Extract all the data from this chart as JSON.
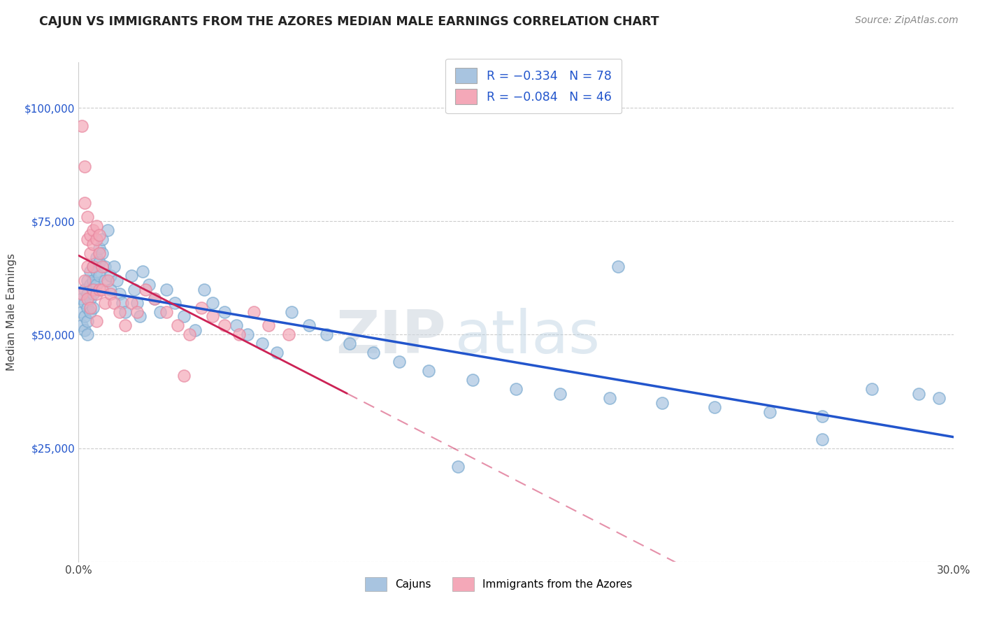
{
  "title": "CAJUN VS IMMIGRANTS FROM THE AZORES MEDIAN MALE EARNINGS CORRELATION CHART",
  "source": "Source: ZipAtlas.com",
  "ylabel": "Median Male Earnings",
  "xlim": [
    0.0,
    0.3
  ],
  "ylim": [
    0,
    110000
  ],
  "xtick_positions": [
    0.0,
    0.05,
    0.1,
    0.15,
    0.2,
    0.25,
    0.3
  ],
  "xticklabels": [
    "0.0%",
    "",
    "",
    "",
    "",
    "",
    "30.0%"
  ],
  "ytick_positions": [
    0,
    25000,
    50000,
    75000,
    100000
  ],
  "yticklabels": [
    "",
    "$25,000",
    "$50,000",
    "$75,000",
    "$100,000"
  ],
  "legend_r1": "-0.334",
  "legend_n1": "78",
  "legend_r2": "-0.084",
  "legend_n2": "46",
  "cajun_color": "#a8c4e0",
  "cajun_edge_color": "#7aaad0",
  "azores_color": "#f4a8b8",
  "azores_edge_color": "#e888a0",
  "cajun_line_color": "#2255cc",
  "azores_line_color": "#cc2255",
  "background_color": "#ffffff",
  "grid_color": "#cccccc",
  "watermark_zip": "ZIP",
  "watermark_atlas": "atlas",
  "cajun_x": [
    0.001,
    0.001,
    0.001,
    0.002,
    0.002,
    0.002,
    0.002,
    0.003,
    0.003,
    0.003,
    0.003,
    0.003,
    0.004,
    0.004,
    0.004,
    0.004,
    0.005,
    0.005,
    0.005,
    0.005,
    0.006,
    0.006,
    0.006,
    0.007,
    0.007,
    0.007,
    0.008,
    0.008,
    0.009,
    0.009,
    0.01,
    0.011,
    0.011,
    0.012,
    0.013,
    0.014,
    0.015,
    0.016,
    0.018,
    0.019,
    0.02,
    0.021,
    0.022,
    0.024,
    0.026,
    0.028,
    0.03,
    0.033,
    0.036,
    0.04,
    0.043,
    0.046,
    0.05,
    0.054,
    0.058,
    0.063,
    0.068,
    0.073,
    0.079,
    0.085,
    0.093,
    0.101,
    0.11,
    0.12,
    0.135,
    0.15,
    0.165,
    0.182,
    0.2,
    0.218,
    0.237,
    0.255,
    0.272,
    0.288,
    0.295,
    0.255,
    0.13,
    0.185
  ],
  "cajun_y": [
    58000,
    55000,
    52000,
    60000,
    57000,
    54000,
    51000,
    62000,
    59000,
    56000,
    53000,
    50000,
    64000,
    61000,
    58000,
    55000,
    65000,
    62000,
    59000,
    56000,
    67000,
    64000,
    61000,
    69000,
    66000,
    63000,
    71000,
    68000,
    65000,
    62000,
    73000,
    63000,
    60000,
    65000,
    62000,
    59000,
    57000,
    55000,
    63000,
    60000,
    57000,
    54000,
    64000,
    61000,
    58000,
    55000,
    60000,
    57000,
    54000,
    51000,
    60000,
    57000,
    55000,
    52000,
    50000,
    48000,
    46000,
    55000,
    52000,
    50000,
    48000,
    46000,
    44000,
    42000,
    40000,
    38000,
    37000,
    36000,
    35000,
    34000,
    33000,
    32000,
    38000,
    37000,
    36000,
    27000,
    21000,
    65000
  ],
  "azores_x": [
    0.001,
    0.001,
    0.002,
    0.002,
    0.002,
    0.003,
    0.003,
    0.003,
    0.003,
    0.004,
    0.004,
    0.004,
    0.005,
    0.005,
    0.005,
    0.005,
    0.006,
    0.006,
    0.006,
    0.007,
    0.007,
    0.007,
    0.008,
    0.008,
    0.009,
    0.01,
    0.011,
    0.012,
    0.014,
    0.016,
    0.018,
    0.02,
    0.023,
    0.026,
    0.03,
    0.034,
    0.038,
    0.042,
    0.046,
    0.05,
    0.055,
    0.06,
    0.065,
    0.072,
    0.006,
    0.036
  ],
  "azores_y": [
    96000,
    59000,
    87000,
    79000,
    62000,
    76000,
    71000,
    65000,
    58000,
    72000,
    68000,
    56000,
    73000,
    70000,
    65000,
    60000,
    74000,
    71000,
    59000,
    72000,
    68000,
    60000,
    65000,
    60000,
    57000,
    62000,
    59000,
    57000,
    55000,
    52000,
    57000,
    55000,
    60000,
    58000,
    55000,
    52000,
    50000,
    56000,
    54000,
    52000,
    50000,
    55000,
    52000,
    50000,
    53000,
    41000
  ]
}
